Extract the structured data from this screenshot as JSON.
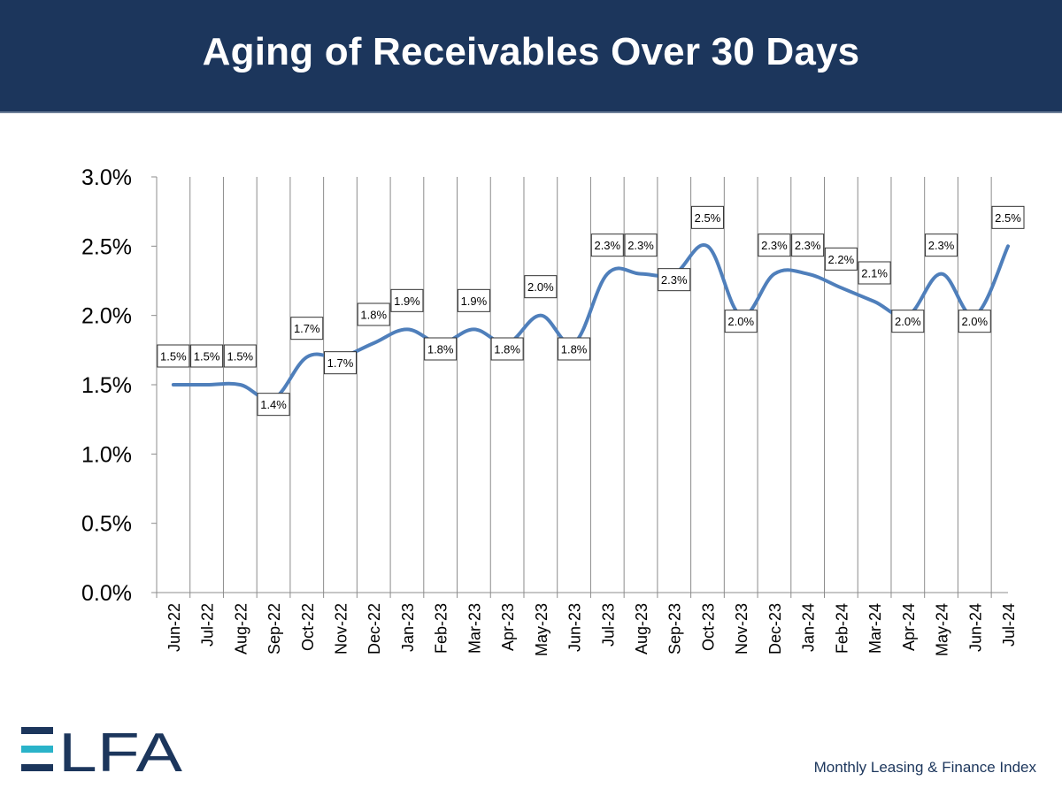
{
  "header": {
    "title": "Aging of Receivables Over 30 Days"
  },
  "colors": {
    "header_bg": "#1c365c",
    "line": "#4f7fbb",
    "accent": "#2ab3c9",
    "brand_navy": "#1c365c"
  },
  "chart_data": {
    "type": "line",
    "title": "Aging of Receivables Over 30 Days",
    "xlabel": "",
    "ylabel": "",
    "ylim": [
      0,
      0.03
    ],
    "yticks": [
      "0.0%",
      "0.5%",
      "1.0%",
      "1.5%",
      "2.0%",
      "2.5%",
      "3.0%"
    ],
    "grid": "vertical",
    "legend": "none",
    "smooth": true,
    "categories": [
      "Jun-22",
      "Jul-22",
      "Aug-22",
      "Sep-22",
      "Oct-22",
      "Nov-22",
      "Dec-22",
      "Jan-23",
      "Feb-23",
      "Mar-23",
      "Apr-23",
      "May-23",
      "Jun-23",
      "Jul-23",
      "Aug-23",
      "Sep-23",
      "Oct-23",
      "Nov-23",
      "Dec-23",
      "Jan-24",
      "Feb-24",
      "Mar-24",
      "Apr-24",
      "May-24",
      "Jun-24",
      "Jul-24"
    ],
    "values": [
      0.015,
      0.015,
      0.015,
      0.014,
      0.017,
      0.017,
      0.018,
      0.019,
      0.018,
      0.019,
      0.018,
      0.02,
      0.018,
      0.023,
      0.023,
      0.023,
      0.025,
      0.02,
      0.023,
      0.023,
      0.022,
      0.021,
      0.02,
      0.023,
      0.02,
      0.025
    ],
    "data_labels": [
      "1.5%",
      "1.5%",
      "1.5%",
      "1.4%",
      "1.7%",
      "1.7%",
      "1.8%",
      "1.9%",
      "1.8%",
      "1.9%",
      "1.8%",
      "2.0%",
      "1.8%",
      "2.3%",
      "2.3%",
      "2.3%",
      "2.5%",
      "2.0%",
      "2.3%",
      "2.3%",
      "2.2%",
      "2.1%",
      "2.0%",
      "2.3%",
      "2.0%",
      "2.5%"
    ]
  },
  "logo": {
    "text": "ELFA"
  },
  "footer": {
    "text": "Monthly Leasing & Finance Index"
  }
}
